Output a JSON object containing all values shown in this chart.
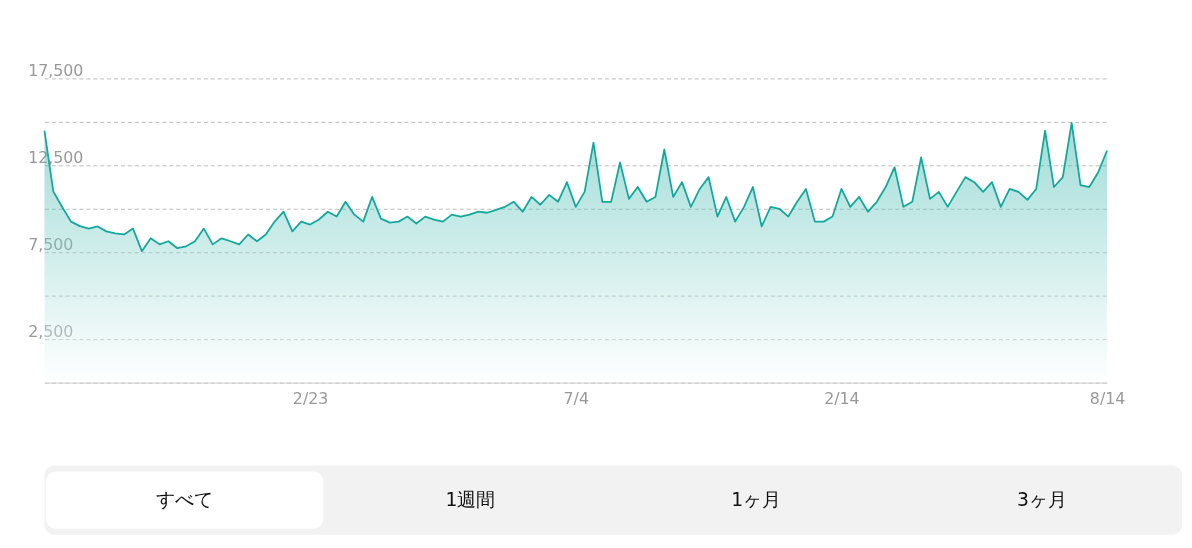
{
  "chart_data": {
    "type": "area",
    "categories": [
      null,
      null,
      null,
      null,
      null,
      null,
      null,
      null,
      null,
      null,
      null,
      null,
      null,
      null,
      null,
      null,
      null,
      null,
      null,
      null,
      null,
      null,
      null,
      null,
      null,
      null,
      null,
      null,
      null,
      null,
      "2/23",
      null,
      null,
      null,
      null,
      null,
      null,
      null,
      null,
      null,
      null,
      null,
      null,
      null,
      null,
      null,
      null,
      null,
      null,
      null,
      null,
      null,
      null,
      null,
      null,
      null,
      null,
      null,
      null,
      null,
      "7/4",
      null,
      null,
      null,
      null,
      null,
      null,
      null,
      null,
      null,
      null,
      null,
      null,
      null,
      null,
      null,
      null,
      null,
      null,
      null,
      null,
      null,
      null,
      null,
      null,
      null,
      null,
      null,
      null,
      null,
      "2/14",
      null,
      null,
      null,
      null,
      null,
      null,
      null,
      null,
      null,
      null,
      null,
      null,
      null,
      null,
      null,
      null,
      null,
      null,
      null,
      null,
      null,
      null,
      null,
      null,
      null,
      null,
      null,
      null,
      null,
      "8/14"
    ],
    "series": [
      {
        "color": "#14a89c",
        "values": [
          14500,
          11000,
          10100,
          9260,
          9000,
          8860,
          8980,
          8700,
          8580,
          8520,
          8860,
          7560,
          8300,
          7950,
          8130,
          7730,
          7840,
          8130,
          8860,
          7950,
          8300,
          8130,
          7950,
          8520,
          8130,
          8520,
          9260,
          9830,
          8700,
          9260,
          9090,
          9380,
          9830,
          9550,
          10400,
          9660,
          9260,
          10680,
          9430,
          9200,
          9260,
          9550,
          9150,
          9550,
          9380,
          9260,
          9660,
          9550,
          9660,
          9830,
          9770,
          9940,
          10110,
          10400,
          9830,
          10680,
          10230,
          10800,
          10400,
          11530,
          10110,
          10970,
          13810,
          10400,
          10400,
          12670,
          10570,
          11250,
          10400,
          10680,
          13410,
          10680,
          11530,
          10110,
          11140,
          11820,
          9550,
          10680,
          9260,
          10110,
          11250,
          8980,
          10110,
          10000,
          9550,
          10400,
          11140,
          9260,
          9260,
          9550,
          11140,
          10110,
          10680,
          9830,
          10400,
          11250,
          12390,
          10110,
          10400,
          12950,
          10570,
          10970,
          10110,
          10970,
          11820,
          11530,
          10970,
          11530,
          10110,
          11140,
          10970,
          10510,
          11140,
          14490,
          11250,
          11820,
          14940,
          11360,
          11250,
          12100,
          13350
        ]
      }
    ],
    "ylim": [
      0,
      17500
    ],
    "yticks": [
      {
        "value": 0,
        "label": null
      },
      {
        "value": 2500,
        "label": "2,500"
      },
      {
        "value": 5000,
        "label": null
      },
      {
        "value": 7500,
        "label": "7,500"
      },
      {
        "value": 10000,
        "label": null
      },
      {
        "value": 12500,
        "label": "12,500"
      },
      {
        "value": 15000,
        "label": null
      },
      {
        "value": 17500,
        "label": "17,500"
      }
    ],
    "grid": "y",
    "annotations": [
      "すべて",
      "1週間",
      "1ヶ月",
      "3ヶ月"
    ]
  }
}
